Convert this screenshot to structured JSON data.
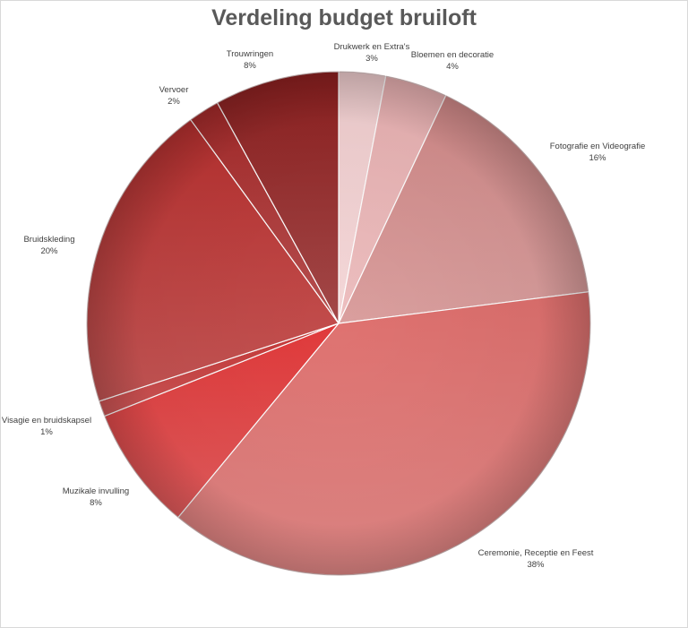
{
  "chart_data": {
    "type": "pie",
    "title": "Verdeling budget bruiloft",
    "slices": [
      {
        "name": "Drukwerk en Extra's",
        "value": 3,
        "label": "3%",
        "color": "#f2cfd0"
      },
      {
        "name": "Bloemen en decoratie",
        "value": 4,
        "label": "4%",
        "color": "#e9b1b2"
      },
      {
        "name": "Fotografie en Videografie",
        "value": 16,
        "label": "16%",
        "color": "#d28a89"
      },
      {
        "name": "Ceremonie, Receptie en Feest",
        "value": 38,
        "label": "38%",
        "color": "#de6f6d"
      },
      {
        "name": "Muzikale invulling",
        "value": 8,
        "label": "8%",
        "color": "#e0393a"
      },
      {
        "name": "Visagie en bruidskapsel",
        "value": 1,
        "label": "1%",
        "color": "#c43434"
      },
      {
        "name": "Bruidskleding",
        "value": 20,
        "label": "20%",
        "color": "#b8302f"
      },
      {
        "name": "Vervoer",
        "value": 2,
        "label": "2%",
        "color": "#a72a2a"
      },
      {
        "name": "Trouwringen",
        "value": 8,
        "label": "8%",
        "color": "#8f2020"
      }
    ],
    "legend": "none",
    "labels_shown": "category name and percentage outside slices"
  }
}
